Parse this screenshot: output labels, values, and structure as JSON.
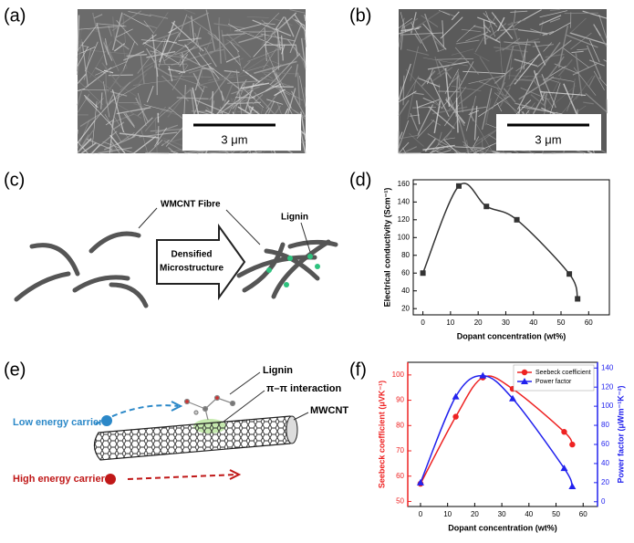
{
  "panels": {
    "a": {
      "label": "(a)",
      "scale_bar": "3 μm"
    },
    "b": {
      "label": "(b)",
      "scale_bar": "3 μm"
    },
    "c": {
      "label": "(c)",
      "fibre": "WMCNT Fibre",
      "lignin": "Lignin",
      "arrow_text": [
        "Densified",
        "Microstructure"
      ]
    },
    "d": {
      "label": "(d)"
    },
    "e": {
      "label": "(e)",
      "lignin": "Lignin",
      "interaction": "π–π interaction",
      "tube": "MWCNT",
      "low": "Low energy carrier",
      "high": "High energy carrier"
    },
    "f": {
      "label": "(f)"
    }
  },
  "chart_data": [
    {
      "type": "line",
      "marker": "square",
      "color": "#333333",
      "x": [
        0,
        13,
        23,
        34,
        53,
        56
      ],
      "values": [
        60,
        158,
        135,
        120,
        59,
        31
      ],
      "xlabel": "Dopant concentration (wt%)",
      "ylabel": "Electrical conductivity (Scm⁻¹)",
      "xlim": [
        -3.5,
        67.5
      ],
      "ylim": [
        13,
        165
      ],
      "xticks": [
        0,
        10,
        20,
        30,
        40,
        50,
        60
      ],
      "yticks": [
        20,
        40,
        60,
        80,
        100,
        120,
        140,
        160
      ]
    },
    {
      "type": "line",
      "x": [
        0,
        13,
        23,
        34,
        53,
        56
      ],
      "series": [
        {
          "name": "Seebeck coefficient",
          "color": "#ee2222",
          "marker": "circle",
          "values": [
            57,
            83.5,
            99,
            94.5,
            77.5,
            72.5
          ]
        },
        {
          "name": "Power factor",
          "color": "#2222ee",
          "marker": "triangle",
          "axis": "y2",
          "values": [
            20,
            110,
            132,
            108,
            35,
            16
          ]
        }
      ],
      "xlabel": "Dopant concentration (wt%)",
      "ylabel": "Seebeck coefficient (μVK⁻¹)",
      "y2label": "Power factor (μWm⁻¹K⁻²)",
      "xlim": [
        -4.7,
        65.3
      ],
      "ylim": [
        48,
        105
      ],
      "y2lim": [
        -5,
        146
      ],
      "xticks": [
        0,
        10,
        20,
        30,
        40,
        50,
        60
      ],
      "yticks": [
        50,
        60,
        70,
        80,
        90,
        100
      ],
      "y2ticks": [
        0,
        20,
        40,
        60,
        80,
        100,
        120,
        140
      ],
      "legend": "upper right"
    }
  ]
}
